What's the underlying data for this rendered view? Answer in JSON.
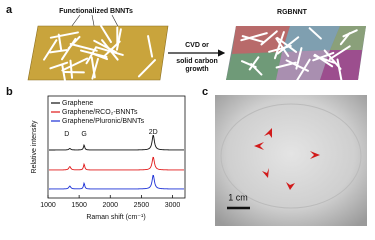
{
  "panel_a": {
    "label": "a",
    "reactant_label": "Functionalized BNNTs",
    "process_label": [
      "CVD or",
      "solid carbon",
      "growth"
    ],
    "product_label": "RGBNNT"
  },
  "panel_b": {
    "label": "b",
    "y_label": "Relative intensity",
    "x_label": "Raman shift (cm⁻¹)",
    "xlim": [
      1000,
      3200
    ],
    "xticks": [
      1000,
      1500,
      2000,
      2500,
      3000
    ],
    "series": [
      {
        "name": "Graphene",
        "color": "#111111"
      },
      {
        "name": "Graphene/RCO₂-BNNTs",
        "color": "#e01818"
      },
      {
        "name": "Graphene/Pluronic/BNNTs",
        "color": "#1a2fd6"
      }
    ],
    "peaks": [
      {
        "label": "D",
        "position": 1350
      },
      {
        "label": "G",
        "position": 1580
      },
      {
        "label": "2D",
        "position": 2690
      }
    ]
  },
  "panel_c": {
    "label": "c",
    "scale_bar_label": "1 cm"
  }
}
